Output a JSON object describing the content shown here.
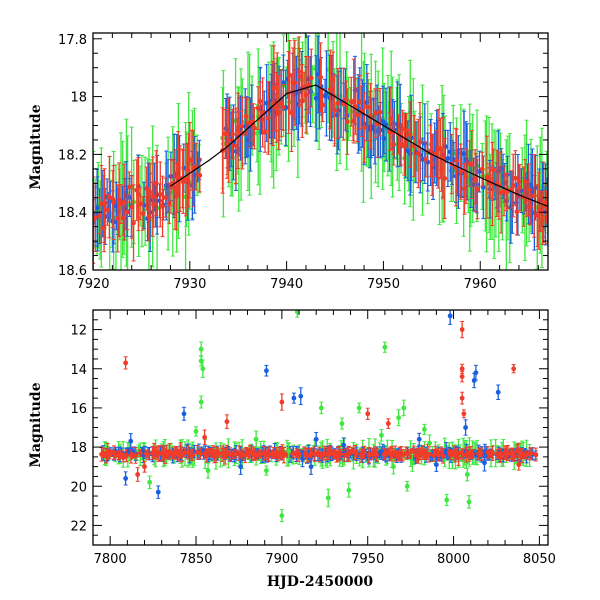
{
  "colors": {
    "blue": "#1a5fe0",
    "red": "#f03c28",
    "green": "#3ee83e",
    "curve": "#000000"
  },
  "chart_data": [
    {
      "type": "scatter",
      "title": "",
      "xlabel": "",
      "ylabel": "Magnitude",
      "xlim": [
        7920,
        7967
      ],
      "ylim": [
        17.78,
        18.6
      ],
      "y_inverted": true,
      "xticks": [
        7920,
        7930,
        7940,
        7950,
        7960
      ],
      "yticks": [
        17.8,
        18,
        18.2,
        18.4,
        18.6
      ],
      "model_curve": {
        "x": [
          7928,
          7932,
          7934,
          7940,
          7943,
          7946,
          7949,
          7951,
          7955,
          7960,
          7964,
          7967
        ],
        "y": [
          18.31,
          18.22,
          18.17,
          17.99,
          17.96,
          18.02,
          18.08,
          18.12,
          18.2,
          18.28,
          18.34,
          18.38
        ]
      },
      "series": [
        {
          "name": "",
          "color": "blue"
        },
        {
          "name": "",
          "color": "red"
        },
        {
          "name": "",
          "color": "green"
        }
      ]
    },
    {
      "type": "scatter",
      "title": "",
      "xlabel": "HJD-2450000",
      "ylabel": "Magnitude",
      "xlim": [
        7790,
        8055
      ],
      "ylim": [
        11,
        23
      ],
      "y_inverted": true,
      "xticks": [
        7800,
        7850,
        7900,
        7950,
        8000,
        8050
      ],
      "yticks": [
        12,
        14,
        16,
        18,
        20,
        22
      ],
      "baseline_magnitude": 18.35,
      "outliers": [
        {
          "x": 7809,
          "y": 13.7,
          "color": "red"
        },
        {
          "x": 7809,
          "y": 19.6,
          "color": "blue"
        },
        {
          "x": 7812,
          "y": 17.7,
          "color": "blue"
        },
        {
          "x": 7816,
          "y": 19.4,
          "color": "red"
        },
        {
          "x": 7820,
          "y": 19.0,
          "color": "red"
        },
        {
          "x": 7823,
          "y": 19.8,
          "color": "green"
        },
        {
          "x": 7828,
          "y": 20.3,
          "color": "blue"
        },
        {
          "x": 7843,
          "y": 16.3,
          "color": "blue"
        },
        {
          "x": 7850,
          "y": 17.2,
          "color": "green"
        },
        {
          "x": 7853,
          "y": 13.0,
          "color": "green"
        },
        {
          "x": 7853,
          "y": 13.6,
          "color": "green"
        },
        {
          "x": 7854,
          "y": 14.0,
          "color": "green"
        },
        {
          "x": 7853,
          "y": 15.7,
          "color": "green"
        },
        {
          "x": 7855,
          "y": 17.5,
          "color": "red"
        },
        {
          "x": 7857,
          "y": 19.2,
          "color": "green"
        },
        {
          "x": 7868,
          "y": 16.7,
          "color": "red"
        },
        {
          "x": 7876,
          "y": 19.0,
          "color": "blue"
        },
        {
          "x": 7885,
          "y": 17.6,
          "color": "green"
        },
        {
          "x": 7891,
          "y": 14.1,
          "color": "blue"
        },
        {
          "x": 7891,
          "y": 19.2,
          "color": "green"
        },
        {
          "x": 7900,
          "y": 15.7,
          "color": "red"
        },
        {
          "x": 7900,
          "y": 21.5,
          "color": "green"
        },
        {
          "x": 7904,
          "y": 18.2,
          "color": "green"
        },
        {
          "x": 7907,
          "y": 15.5,
          "color": "blue"
        },
        {
          "x": 7909,
          "y": 11.1,
          "color": "green"
        },
        {
          "x": 7911,
          "y": 15.4,
          "color": "blue"
        },
        {
          "x": 7912,
          "y": 18.6,
          "color": "blue"
        },
        {
          "x": 7917,
          "y": 19.0,
          "color": "blue"
        },
        {
          "x": 7920,
          "y": 17.6,
          "color": "blue"
        },
        {
          "x": 7923,
          "y": 16.0,
          "color": "green"
        },
        {
          "x": 7927,
          "y": 20.6,
          "color": "green"
        },
        {
          "x": 7935,
          "y": 16.8,
          "color": "green"
        },
        {
          "x": 7936,
          "y": 17.9,
          "color": "blue"
        },
        {
          "x": 7939,
          "y": 20.2,
          "color": "green"
        },
        {
          "x": 7945,
          "y": 16.0,
          "color": "green"
        },
        {
          "x": 7950,
          "y": 16.3,
          "color": "red"
        },
        {
          "x": 7958,
          "y": 17.4,
          "color": "green"
        },
        {
          "x": 7960,
          "y": 12.9,
          "color": "green"
        },
        {
          "x": 7962,
          "y": 16.8,
          "color": "red"
        },
        {
          "x": 7965,
          "y": 19.0,
          "color": "green"
        },
        {
          "x": 7968,
          "y": 16.5,
          "color": "green"
        },
        {
          "x": 7971,
          "y": 16.0,
          "color": "green"
        },
        {
          "x": 7973,
          "y": 20.0,
          "color": "green"
        },
        {
          "x": 7976,
          "y": 18.8,
          "color": "green"
        },
        {
          "x": 7980,
          "y": 17.6,
          "color": "blue"
        },
        {
          "x": 7983,
          "y": 17.1,
          "color": "green"
        },
        {
          "x": 7986,
          "y": 17.8,
          "color": "green"
        },
        {
          "x": 7990,
          "y": 18.9,
          "color": "blue"
        },
        {
          "x": 7996,
          "y": 20.7,
          "color": "green"
        },
        {
          "x": 7998,
          "y": 11.3,
          "color": "blue"
        },
        {
          "x": 8005,
          "y": 12.0,
          "color": "red"
        },
        {
          "x": 8005,
          "y": 14.0,
          "color": "red"
        },
        {
          "x": 8005,
          "y": 14.4,
          "color": "red"
        },
        {
          "x": 8005,
          "y": 15.5,
          "color": "red"
        },
        {
          "x": 8006,
          "y": 16.3,
          "color": "red"
        },
        {
          "x": 8007,
          "y": 17.0,
          "color": "blue"
        },
        {
          "x": 8008,
          "y": 19.4,
          "color": "green"
        },
        {
          "x": 8009,
          "y": 20.8,
          "color": "green"
        },
        {
          "x": 8012,
          "y": 14.6,
          "color": "blue"
        },
        {
          "x": 8013,
          "y": 14.2,
          "color": "blue"
        },
        {
          "x": 8018,
          "y": 18.8,
          "color": "blue"
        },
        {
          "x": 8026,
          "y": 15.2,
          "color": "blue"
        },
        {
          "x": 8035,
          "y": 14.0,
          "color": "red"
        },
        {
          "x": 8038,
          "y": 18.9,
          "color": "red"
        }
      ]
    }
  ]
}
